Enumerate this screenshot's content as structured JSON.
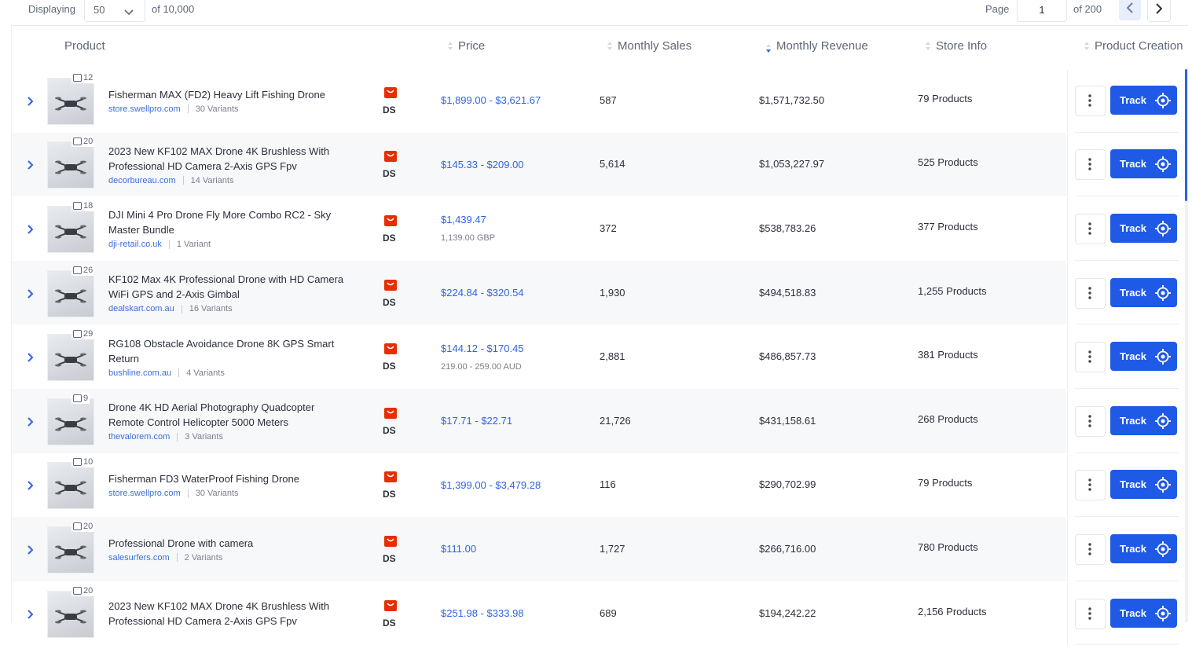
{
  "toolbar": {
    "displaying_label": "Displaying",
    "page_size": "50",
    "total": "of 10,000",
    "page_label": "Page",
    "page": "1",
    "page_total": "of 200"
  },
  "table": {
    "columns": [
      "Product",
      "Price",
      "Monthly Sales",
      "Monthly Revenue",
      "Store Info",
      "Product Creation"
    ],
    "source_badge": "DS",
    "track_label": "Track",
    "rows": [
      {
        "image_count": "12",
        "title": "Fisherman MAX (FD2) Heavy Lift Fishing Drone",
        "store": "store.swellpro.com",
        "variants": "30 Variants",
        "price": "$1,899.00 - $3,621.67",
        "sales": "587",
        "revenue": "$1,571,732.50",
        "store_products": "79 Products"
      },
      {
        "image_count": "20",
        "title": "2023 New KF102 MAX Drone 4K Brushless With Professional HD Camera 2-Axis GPS Fpv",
        "store": "decorbureau.com",
        "variants": "14 Variants",
        "price": "$145.33 - $209.00",
        "sales": "5,614",
        "revenue": "$1,053,227.97",
        "store_products": "525 Products"
      },
      {
        "image_count": "18",
        "title": "DJI Mini 4 Pro Drone Fly More Combo RC2 - Sky Master Bundle",
        "store": "dji-retail.co.uk",
        "variants": "1 Variant",
        "price": "$1,439.47",
        "local_price": "1,139.00 GBP",
        "sales": "372",
        "revenue": "$538,783.26",
        "store_products": "377 Products"
      },
      {
        "image_count": "26",
        "title": "KF102 Max 4K Professional Drone with HD Camera WiFi GPS and 2-Axis Gimbal",
        "store": "dealskart.com.au",
        "variants": "16 Variants",
        "price": "$224.84 - $320.54",
        "sales": "1,930",
        "revenue": "$494,518.83",
        "store_products": "1,255 Products"
      },
      {
        "image_count": "29",
        "title": "RG108 Obstacle Avoidance Drone 8K GPS Smart Return",
        "store": "bushline.com.au",
        "variants": "4 Variants",
        "price": "$144.12 - $170.45",
        "local_price": "219.00 - 259.00 AUD",
        "sales": "2,881",
        "revenue": "$486,857.73",
        "store_products": "381 Products"
      },
      {
        "image_count": "9",
        "title": "Drone 4K HD Aerial Photography Quadcopter Remote Control Helicopter 5000 Meters",
        "store": "thevalorem.com",
        "variants": "3 Variants",
        "price": "$17.71 - $22.71",
        "sales": "21,726",
        "revenue": "$431,158.61",
        "store_products": "268 Products"
      },
      {
        "image_count": "10",
        "title": "Fisherman FD3 WaterProof Fishing Drone",
        "store": "store.swellpro.com",
        "variants": "30 Variants",
        "price": "$1,399.00 - $3,479.28",
        "sales": "116",
        "revenue": "$290,702.99",
        "store_products": "79 Products"
      },
      {
        "image_count": "20",
        "title": "Professional Drone with camera",
        "store": "salesurfers.com",
        "variants": "2 Variants",
        "price": "$111.00",
        "sales": "1,727",
        "revenue": "$266,716.00",
        "store_products": "780 Products"
      },
      {
        "image_count": "20",
        "title": "2023 New KF102 MAX Drone 4K Brushless With Professional HD Camera 2-Axis GPS Fpv",
        "price": "$251.98 - $333.98",
        "sales": "689",
        "revenue": "$194,242.22",
        "store_products": "2,156 Products"
      }
    ]
  }
}
